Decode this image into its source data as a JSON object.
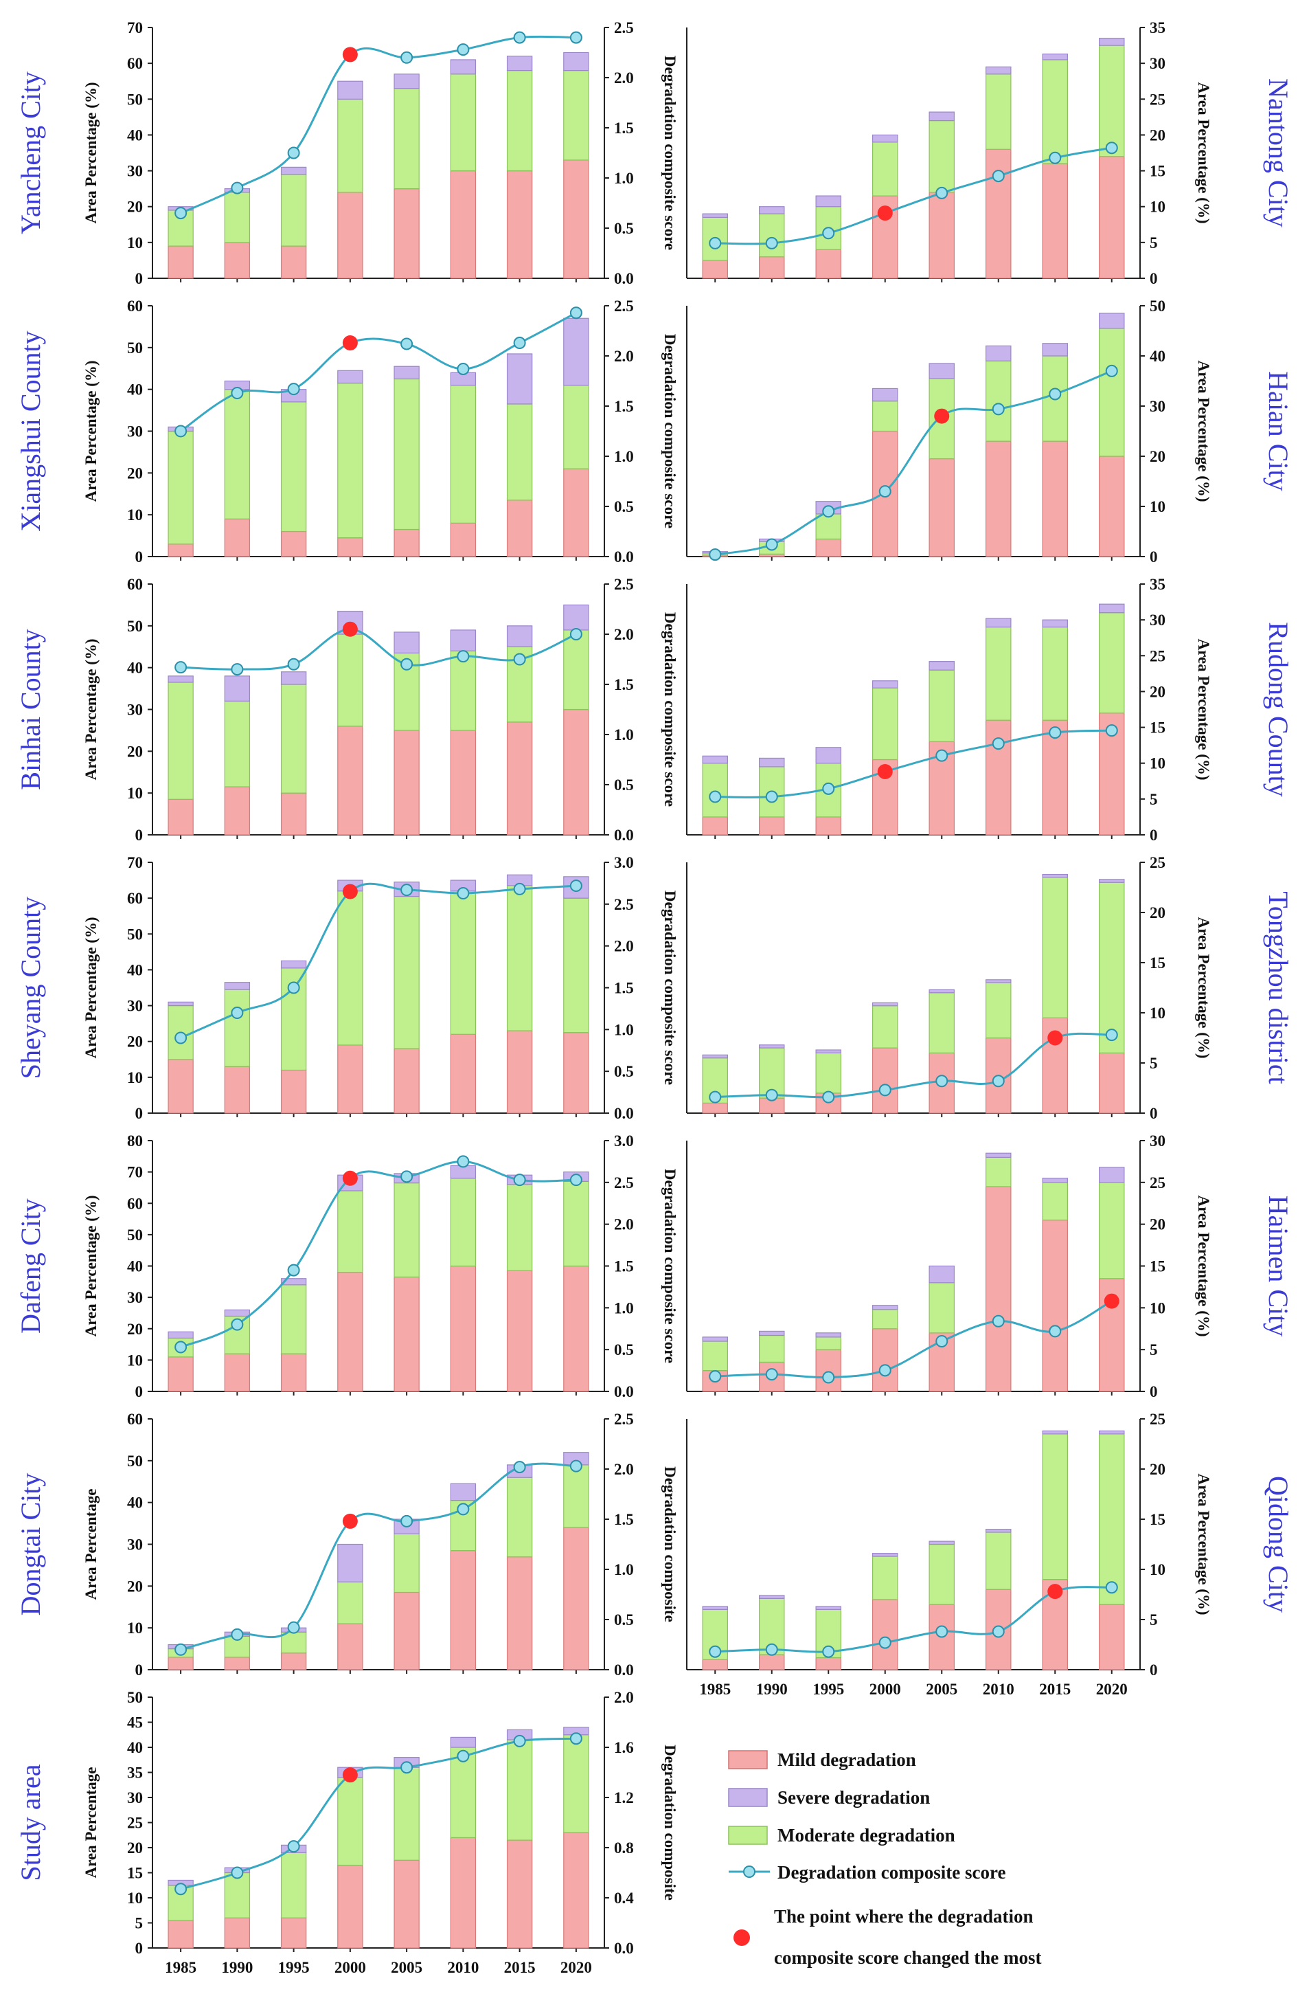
{
  "chart_data": [
    {
      "type": "bar",
      "title": "Yancheng City",
      "ylabel": "Area Percentage (%)",
      "y2label": "Degradation composite score",
      "categories": [
        "1985",
        "1990",
        "1995",
        "2000",
        "2005",
        "2010",
        "2015",
        "2020"
      ],
      "ylim": [
        0,
        70
      ],
      "ystep": 10,
      "y2lim": [
        0,
        2.5
      ],
      "y2step": 0.5,
      "y2dec": 1,
      "series": [
        {
          "name": "Mild degradation",
          "values": [
            9,
            10,
            9,
            24,
            25,
            30,
            30,
            33
          ]
        },
        {
          "name": "Moderate degradation",
          "values": [
            10,
            14,
            20,
            26,
            28,
            27,
            28,
            25
          ]
        },
        {
          "name": "Severe degradation",
          "values": [
            1,
            1,
            2,
            5,
            4,
            4,
            4,
            5
          ]
        },
        {
          "name": "Degradation composite score",
          "values": [
            0.65,
            0.9,
            1.25,
            2.23,
            2.2,
            2.28,
            2.4,
            2.4
          ]
        }
      ],
      "max_change_index": 3
    },
    {
      "type": "bar",
      "title": "Nantong City",
      "ylabel": "Area Percentage (%)",
      "categories": [
        "1985",
        "1990",
        "1995",
        "2000",
        "2005",
        "2010",
        "2015",
        "2020"
      ],
      "ylim": [
        0,
        35
      ],
      "ystep": 5,
      "ydec": 0,
      "series": [
        {
          "name": "Mild degradation",
          "values": [
            2.5,
            3,
            4,
            11.5,
            12,
            18,
            16,
            17
          ]
        },
        {
          "name": "Moderate degradation",
          "values": [
            6,
            6,
            6,
            7.5,
            10,
            10.5,
            14.5,
            15.5
          ]
        },
        {
          "name": "Severe degradation",
          "values": [
            0.5,
            1,
            1.5,
            1,
            1.2,
            1,
            0.8,
            1
          ]
        },
        {
          "name": "Degradation composite score",
          "values": [
            0.35,
            0.35,
            0.45,
            0.65,
            0.85,
            1.02,
            1.2,
            1.3
          ]
        }
      ],
      "y2lim": [
        0,
        2.5
      ],
      "max_change_index": 3
    },
    {
      "type": "bar",
      "title": "Xiangshui County",
      "ylabel": "Area Percentage (%)",
      "y2label": "Degradation composite score",
      "categories": [
        "1985",
        "1990",
        "1995",
        "2000",
        "2005",
        "2010",
        "2015",
        "2020"
      ],
      "ylim": [
        0,
        60
      ],
      "ystep": 10,
      "y2lim": [
        0,
        2.5
      ],
      "y2step": 0.5,
      "y2dec": 1,
      "series": [
        {
          "name": "Mild degradation",
          "values": [
            3,
            9,
            6,
            4.5,
            6.5,
            8,
            13.5,
            21
          ]
        },
        {
          "name": "Moderate degradation",
          "values": [
            27,
            31,
            31,
            37,
            36,
            33,
            23,
            20
          ]
        },
        {
          "name": "Severe degradation",
          "values": [
            1,
            2,
            3,
            3,
            3,
            3,
            12,
            16
          ]
        },
        {
          "name": "Degradation composite score",
          "values": [
            1.25,
            1.63,
            1.67,
            2.13,
            2.12,
            1.87,
            2.13,
            2.43
          ]
        }
      ],
      "max_change_index": 3
    },
    {
      "type": "bar",
      "title": "Haian City",
      "ylabel": "Area Percentage (%)",
      "categories": [
        "1985",
        "1990",
        "1995",
        "2000",
        "2005",
        "2010",
        "2015",
        "2020"
      ],
      "ylim": [
        0,
        50
      ],
      "ystep": 10,
      "ydec": 0,
      "series": [
        {
          "name": "Mild degradation",
          "values": [
            0.3,
            0.5,
            3.5,
            25,
            19.5,
            23,
            23,
            20
          ]
        },
        {
          "name": "Moderate degradation",
          "values": [
            0.4,
            2.5,
            5,
            6,
            16,
            16,
            17,
            25.5
          ]
        },
        {
          "name": "Severe degradation",
          "values": [
            0.3,
            0.5,
            2.5,
            2.5,
            3,
            3,
            2.5,
            3
          ]
        },
        {
          "name": "Degradation composite score",
          "values": [
            0.02,
            0.12,
            0.45,
            0.65,
            1.4,
            1.47,
            1.62,
            1.85
          ]
        }
      ],
      "y2lim": [
        0,
        2.5
      ],
      "max_change_index": 4
    },
    {
      "type": "bar",
      "title": "Binhai County",
      "ylabel": "Area Percentage (%)",
      "y2label": "Degradation composite score",
      "categories": [
        "1985",
        "1990",
        "1995",
        "2000",
        "2005",
        "2010",
        "2015",
        "2020"
      ],
      "ylim": [
        0,
        60
      ],
      "ystep": 10,
      "y2lim": [
        0,
        2.5
      ],
      "y2step": 0.5,
      "y2dec": 1,
      "series": [
        {
          "name": "Mild degradation",
          "values": [
            8.5,
            11.5,
            10,
            26,
            25,
            25,
            27,
            30
          ]
        },
        {
          "name": "Moderate degradation",
          "values": [
            28,
            20.5,
            26,
            22,
            18.5,
            19,
            18,
            19
          ]
        },
        {
          "name": "Severe degradation",
          "values": [
            1.5,
            6,
            3,
            5.5,
            5,
            5,
            5,
            6
          ]
        },
        {
          "name": "Degradation composite score",
          "values": [
            1.67,
            1.65,
            1.7,
            2.05,
            1.7,
            1.78,
            1.75,
            2.0
          ]
        }
      ],
      "max_change_index": 3
    },
    {
      "type": "bar",
      "title": "Rudong County",
      "ylabel": "Area Percentage (%)",
      "categories": [
        "1985",
        "1990",
        "1995",
        "2000",
        "2005",
        "2010",
        "2015",
        "2020"
      ],
      "ylim": [
        0,
        35
      ],
      "ystep": 5,
      "ydec": 0,
      "series": [
        {
          "name": "Mild degradation",
          "values": [
            2.5,
            2.5,
            2.5,
            10.5,
            13,
            16,
            16,
            17
          ]
        },
        {
          "name": "Moderate degradation",
          "values": [
            7.5,
            7,
            7.5,
            10,
            10,
            13,
            13,
            14
          ]
        },
        {
          "name": "Severe degradation",
          "values": [
            1,
            1.2,
            2.2,
            1,
            1.2,
            1.2,
            1,
            1.2
          ]
        },
        {
          "name": "Degradation composite score",
          "values": [
            0.38,
            0.38,
            0.46,
            0.63,
            0.79,
            0.91,
            1.02,
            1.04
          ]
        }
      ],
      "y2lim": [
        0,
        2.5
      ],
      "max_change_index": 3
    },
    {
      "type": "bar",
      "title": "Sheyang County",
      "ylabel": "Area Percentage (%)",
      "y2label": "Degradation composite score",
      "categories": [
        "1985",
        "1990",
        "1995",
        "2000",
        "2005",
        "2010",
        "2015",
        "2020"
      ],
      "ylim": [
        0,
        70
      ],
      "ystep": 10,
      "y2lim": [
        0,
        3
      ],
      "y2step": 0.5,
      "y2dec": 1,
      "series": [
        {
          "name": "Mild degradation",
          "values": [
            15,
            13,
            12,
            19,
            18,
            22,
            23,
            22.5
          ]
        },
        {
          "name": "Moderate degradation",
          "values": [
            15,
            21.5,
            28.5,
            43,
            42.5,
            40,
            40.5,
            37.5
          ]
        },
        {
          "name": "Severe degradation",
          "values": [
            1,
            2,
            2,
            3,
            4,
            3,
            3,
            6
          ]
        },
        {
          "name": "Degradation composite score",
          "values": [
            0.9,
            1.2,
            1.5,
            2.65,
            2.67,
            2.63,
            2.68,
            2.72
          ]
        }
      ],
      "max_change_index": 3
    },
    {
      "type": "bar",
      "title": "Tongzhou district",
      "ylabel": "Area Percentage (%)",
      "categories": [
        "1985",
        "1990",
        "1995",
        "2000",
        "2005",
        "2010",
        "2015",
        "2020"
      ],
      "ylim": [
        0,
        25
      ],
      "ystep": 5,
      "ydec": 0,
      "series": [
        {
          "name": "Mild degradation",
          "values": [
            1,
            1.5,
            2,
            6.5,
            6,
            7.5,
            9.5,
            6
          ]
        },
        {
          "name": "Moderate degradation",
          "values": [
            4.5,
            5,
            4,
            4.2,
            6,
            5.5,
            14,
            17
          ]
        },
        {
          "name": "Severe degradation",
          "values": [
            0.3,
            0.3,
            0.3,
            0.3,
            0.3,
            0.3,
            0.3,
            0.3
          ]
        },
        {
          "name": "Degradation composite score",
          "values": [
            0.16,
            0.18,
            0.16,
            0.23,
            0.32,
            0.32,
            0.75,
            0.78
          ]
        }
      ],
      "y2lim": [
        0,
        2.5
      ],
      "max_change_index": 6
    },
    {
      "type": "bar",
      "title": "Dafeng City",
      "ylabel": "Area Percentage (%)",
      "y2label": "Degradation composite score",
      "categories": [
        "1985",
        "1990",
        "1995",
        "2000",
        "2005",
        "2010",
        "2015",
        "2020"
      ],
      "ylim": [
        0,
        80
      ],
      "ystep": 10,
      "y2lim": [
        0,
        3
      ],
      "y2step": 0.5,
      "y2dec": 1,
      "series": [
        {
          "name": "Mild degradation",
          "values": [
            11,
            12,
            12,
            38,
            36.5,
            40,
            38.5,
            40
          ]
        },
        {
          "name": "Moderate degradation",
          "values": [
            6,
            12,
            22,
            26,
            30,
            28,
            27.5,
            27
          ]
        },
        {
          "name": "Severe degradation",
          "values": [
            2,
            2,
            2,
            5,
            3,
            4,
            3,
            3
          ]
        },
        {
          "name": "Degradation composite score",
          "values": [
            0.53,
            0.8,
            1.45,
            2.55,
            2.57,
            2.75,
            2.53,
            2.53
          ]
        }
      ],
      "max_change_index": 3
    },
    {
      "type": "bar",
      "title": "Haimen City",
      "ylabel": "Area Percentage (%)",
      "categories": [
        "1985",
        "1990",
        "1995",
        "2000",
        "2005",
        "2010",
        "2015",
        "2020"
      ],
      "ylim": [
        0,
        30
      ],
      "ystep": 5,
      "ydec": 0,
      "series": [
        {
          "name": "Mild degradation",
          "values": [
            2.5,
            3.5,
            5,
            7.5,
            7,
            24.5,
            20.5,
            13.5
          ]
        },
        {
          "name": "Moderate degradation",
          "values": [
            3.5,
            3.2,
            1.5,
            2.3,
            6,
            3.5,
            4.5,
            11.5
          ]
        },
        {
          "name": "Severe degradation",
          "values": [
            0.5,
            0.5,
            0.5,
            0.5,
            2,
            0.5,
            0.5,
            1.8
          ]
        },
        {
          "name": "Degradation composite score",
          "values": [
            0.15,
            0.17,
            0.14,
            0.21,
            0.5,
            0.7,
            0.6,
            0.9
          ]
        }
      ],
      "y2lim": [
        0,
        2.5
      ],
      "max_change_index": 7
    },
    {
      "type": "bar",
      "title": "Dongtai City",
      "ylabel": "Area Percentage",
      "y2label": "Degradation composite",
      "categories": [
        "1985",
        "1990",
        "1995",
        "2000",
        "2005",
        "2010",
        "2015",
        "2020"
      ],
      "ylim": [
        0,
        60
      ],
      "ystep": 10,
      "y2lim": [
        0,
        2.5
      ],
      "y2step": 0.5,
      "y2dec": 1,
      "series": [
        {
          "name": "Mild degradation",
          "values": [
            3,
            3,
            4,
            11,
            18.5,
            28.5,
            27,
            34
          ]
        },
        {
          "name": "Moderate degradation",
          "values": [
            2,
            5,
            5,
            10,
            14,
            12,
            19,
            15
          ]
        },
        {
          "name": "Severe degradation",
          "values": [
            1,
            1,
            1,
            9,
            3.5,
            4,
            3,
            3
          ]
        },
        {
          "name": "Degradation composite score",
          "values": [
            0.2,
            0.35,
            0.42,
            1.48,
            1.48,
            1.6,
            2.02,
            2.03
          ]
        }
      ],
      "max_change_index": 3
    },
    {
      "type": "bar",
      "title": "Qidong City",
      "ylabel": "Area Percentage (%)",
      "categories": [
        "1985",
        "1990",
        "1995",
        "2000",
        "2005",
        "2010",
        "2015",
        "2020"
      ],
      "ylim": [
        0,
        25
      ],
      "ystep": 5,
      "ydec": 0,
      "series": [
        {
          "name": "Mild degradation",
          "values": [
            1,
            1.5,
            1.2,
            7,
            6.5,
            8,
            9,
            6.5
          ]
        },
        {
          "name": "Moderate degradation",
          "values": [
            5,
            5.6,
            4.8,
            4.3,
            6,
            5.7,
            14.5,
            17
          ]
        },
        {
          "name": "Severe degradation",
          "values": [
            0.3,
            0.3,
            0.3,
            0.3,
            0.3,
            0.3,
            0.3,
            0.3
          ]
        },
        {
          "name": "Degradation composite score",
          "values": [
            0.18,
            0.2,
            0.18,
            0.27,
            0.38,
            0.38,
            0.78,
            0.82
          ]
        }
      ],
      "y2lim": [
        0,
        2.5
      ],
      "max_change_index": 6
    },
    {
      "type": "bar",
      "title": "Study area",
      "ylabel": "Area Percentage",
      "y2label": "Degradation composite",
      "categories": [
        "1985",
        "1990",
        "1995",
        "2000",
        "2005",
        "2010",
        "2015",
        "2020"
      ],
      "ylim": [
        0,
        50
      ],
      "ystep": 5,
      "y2lim": [
        0,
        2.0
      ],
      "y2step": 0.4,
      "y2dec": 1,
      "series": [
        {
          "name": "Mild degradation",
          "values": [
            5.5,
            6,
            6,
            16.5,
            17.5,
            22,
            21.5,
            23
          ]
        },
        {
          "name": "Moderate degradation",
          "values": [
            7,
            9,
            13,
            17.5,
            18.5,
            18,
            20,
            19.5
          ]
        },
        {
          "name": "Severe degradation",
          "values": [
            1,
            1,
            1.5,
            2,
            2,
            2,
            2,
            1.5
          ]
        },
        {
          "name": "Degradation composite score",
          "values": [
            0.47,
            0.6,
            0.81,
            1.38,
            1.44,
            1.53,
            1.65,
            1.67
          ]
        }
      ],
      "max_change_index": 3
    }
  ],
  "legend": {
    "mild": "Mild degradation",
    "severe": "Severe degradation",
    "moderate": "Moderate degradation",
    "score": "Degradation composite score",
    "point_line1": "The point where the degradation",
    "point_line2": "composite score changed the most"
  },
  "colors": {
    "mild": "#f6a9a9",
    "moderate": "#bff08d",
    "severe": "#c8b4ec",
    "line": "#39a8c2",
    "marker": "#9ee0ee",
    "highlight": "#ff2a2a",
    "place": "#3a3ad4"
  }
}
